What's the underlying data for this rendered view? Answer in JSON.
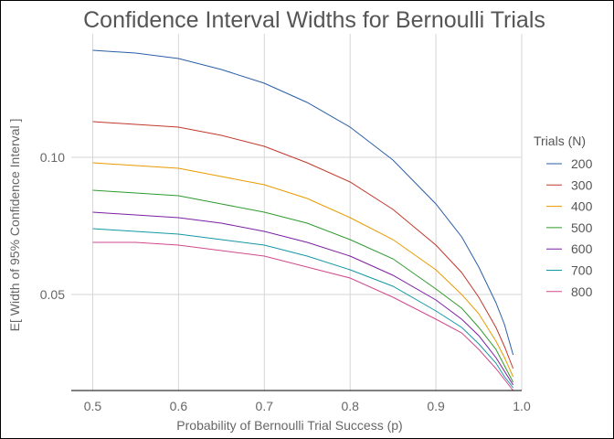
{
  "chart_data": {
    "type": "line",
    "title": "Confidence Interval Widths for Bernoulli Trials",
    "xlabel": "Probability of Bernoulli Trial Success (p)",
    "ylabel": "E[ Width of 95% Confidence Interval ]",
    "xlim": [
      0.475,
      1.0
    ],
    "ylim": [
      0.015,
      0.145
    ],
    "xticks": [
      0.5,
      0.6,
      0.7,
      0.8,
      0.9,
      1.0
    ],
    "xtick_labels": [
      "0.5",
      "0.6",
      "0.7",
      "0.8",
      "0.9",
      "1.0"
    ],
    "yticks": [
      0.05,
      0.1
    ],
    "ytick_labels": [
      "0.05",
      "0.10"
    ],
    "grid": true,
    "legend": {
      "title": "Trials (N)",
      "position": "right"
    },
    "x": [
      0.5,
      0.55,
      0.6,
      0.65,
      0.7,
      0.75,
      0.8,
      0.85,
      0.9,
      0.93,
      0.95,
      0.97,
      0.98,
      0.99
    ],
    "series": [
      {
        "name": "200",
        "color": "#2b5fa6",
        "values": [
          0.139,
          0.138,
          0.136,
          0.132,
          0.127,
          0.12,
          0.111,
          0.099,
          0.083,
          0.071,
          0.06,
          0.047,
          0.039,
          0.028
        ]
      },
      {
        "name": "300",
        "color": "#c0392b",
        "values": [
          0.113,
          0.112,
          0.111,
          0.108,
          0.104,
          0.098,
          0.091,
          0.081,
          0.068,
          0.058,
          0.049,
          0.038,
          0.031,
          0.023
        ]
      },
      {
        "name": "400",
        "color": "#e89a00",
        "values": [
          0.098,
          0.097,
          0.096,
          0.093,
          0.09,
          0.085,
          0.078,
          0.07,
          0.059,
          0.05,
          0.043,
          0.033,
          0.027,
          0.02
        ]
      },
      {
        "name": "500",
        "color": "#2e9a2e",
        "values": [
          0.088,
          0.087,
          0.086,
          0.083,
          0.08,
          0.076,
          0.07,
          0.063,
          0.052,
          0.045,
          0.038,
          0.03,
          0.024,
          0.018
        ]
      },
      {
        "name": "600",
        "color": "#7b1fa2",
        "values": [
          0.08,
          0.079,
          0.078,
          0.076,
          0.073,
          0.069,
          0.064,
          0.057,
          0.048,
          0.041,
          0.035,
          0.027,
          0.022,
          0.017
        ]
      },
      {
        "name": "700",
        "color": "#1597a5",
        "values": [
          0.074,
          0.073,
          0.072,
          0.07,
          0.068,
          0.064,
          0.059,
          0.053,
          0.044,
          0.038,
          0.032,
          0.025,
          0.02,
          0.016
        ]
      },
      {
        "name": "800",
        "color": "#d04a8c",
        "values": [
          0.069,
          0.069,
          0.068,
          0.066,
          0.064,
          0.06,
          0.056,
          0.049,
          0.041,
          0.036,
          0.03,
          0.023,
          0.019,
          0.015
        ]
      }
    ]
  }
}
